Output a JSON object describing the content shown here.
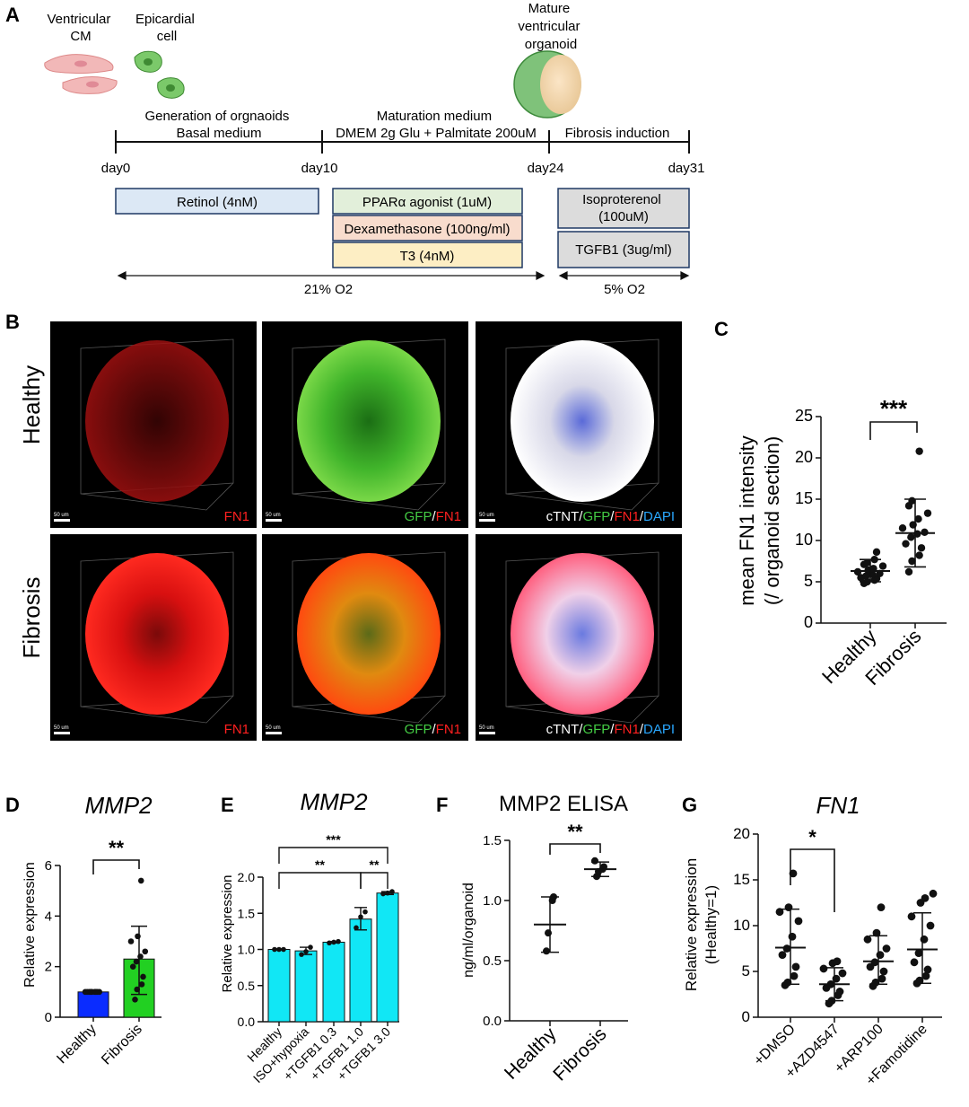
{
  "panel_labels": {
    "A": "A",
    "B": "B",
    "C": "C",
    "D": "D",
    "E": "E",
    "F": "F",
    "G": "G"
  },
  "panelA": {
    "cell1": [
      "Ventricular",
      "CM"
    ],
    "cell2": [
      "Epicardial",
      "cell"
    ],
    "organoid": [
      "Mature",
      "ventricular",
      "organoid"
    ],
    "phase1": [
      "Generation of orgnaoids",
      "Basal medium"
    ],
    "phase2": [
      "Maturation medium",
      "DMEM 2g Glu + Palmitate 200uM"
    ],
    "phase3": [
      "Fibrosis induction"
    ],
    "days": [
      "day0",
      "day10",
      "day24",
      "day31"
    ],
    "boxes": {
      "retinol": "Retinol (4nM)",
      "ppar": "PPARα agonist (1uM)",
      "dexa": "Dexamethasone (100ng/ml)",
      "t3": "T3 (4nM)",
      "iso": [
        "Isoproterenol",
        "(100uM)"
      ],
      "tgfb": "TGFB1 (3ug/ml)"
    },
    "o2_left": "21% O2",
    "o2_right": "5% O2",
    "colors": {
      "retinol": "#dce8f5",
      "ppar": "#e2efda",
      "dexa": "#f8dccd",
      "t3": "#fdeec4",
      "iso": "#dcdcdc",
      "tgfb": "#dcdcdc",
      "border": "#1f3864"
    }
  },
  "panelB": {
    "row_labels": [
      "Healthy",
      "Fibrosis"
    ],
    "scale_bar": "50 um",
    "captions": [
      [
        {
          "t": "FN1",
          "c": "#ff2020"
        }
      ],
      [
        {
          "t": "GFP",
          "c": "#44cc44"
        },
        {
          "t": "/",
          "c": "#ffffff"
        },
        {
          "t": "FN1",
          "c": "#ff2020"
        }
      ],
      [
        {
          "t": "cTNT",
          "c": "#ffffff"
        },
        {
          "t": "/",
          "c": "#ffffff"
        },
        {
          "t": "GFP",
          "c": "#44cc44"
        },
        {
          "t": "/",
          "c": "#ffffff"
        },
        {
          "t": "FN1",
          "c": "#ff2020"
        },
        {
          "t": "/",
          "c": "#ffffff"
        },
        {
          "t": "DAPI",
          "c": "#2aa8ff"
        }
      ]
    ]
  },
  "chart_data": [
    {
      "id": "C",
      "type": "scatter",
      "title": "",
      "ylabel": [
        "mean FN1 intensity",
        "(/ organoid section)"
      ],
      "categories": [
        "Healthy",
        "Fibrosis"
      ],
      "ylim": [
        0,
        25
      ],
      "yticks": [
        0,
        5,
        10,
        15,
        20,
        25
      ],
      "series": [
        {
          "name": "Healthy",
          "points": [
            4.8,
            5.0,
            5.2,
            5.4,
            5.5,
            5.7,
            5.9,
            6.0,
            6.2,
            6.4,
            6.6,
            6.9,
            7.1,
            7.3,
            7.7,
            8.6
          ],
          "mean": 6.3,
          "sd": [
            5.0,
            7.7
          ]
        },
        {
          "name": "Fibrosis",
          "points": [
            6.2,
            7.5,
            8.2,
            9.1,
            9.6,
            10.4,
            10.8,
            11.0,
            11.5,
            11.9,
            12.6,
            13.3,
            14.2,
            14.8,
            20.8
          ],
          "mean": 10.9,
          "sd": [
            6.8,
            15.0
          ]
        }
      ],
      "significance": "***"
    },
    {
      "id": "D",
      "type": "bar",
      "title": "MMP2",
      "ylabel": "Relative expression",
      "categories": [
        "Healthy",
        "Fibrosis"
      ],
      "ylim": [
        0,
        6
      ],
      "yticks": [
        0,
        2,
        4,
        6
      ],
      "values": [
        1.0,
        2.3
      ],
      "err": [
        [
          1.0,
          1.0
        ],
        [
          0.9,
          3.6
        ]
      ],
      "colors": [
        "#0a2cff",
        "#22d022"
      ],
      "points": [
        [
          1,
          1,
          1,
          1,
          1,
          1,
          1,
          1,
          1,
          1,
          1
        ],
        [
          0.7,
          1.1,
          1.3,
          1.6,
          2.0,
          2.2,
          2.4,
          2.6,
          3.0,
          3.2,
          5.4
        ]
      ],
      "significance": "**"
    },
    {
      "id": "E",
      "type": "bar",
      "title": "MMP2",
      "ylabel": "Relative expression",
      "categories": [
        "Healthy",
        "ISO+hypoxia",
        "+TGFB1 0.3",
        "+TGFB1 1.0",
        "+TGFB1 3.0"
      ],
      "ylim": [
        0,
        2.0
      ],
      "yticks": [
        "0.0",
        "0.5",
        "1.0",
        "1.5",
        "2.0"
      ],
      "values": [
        1.0,
        0.98,
        1.1,
        1.42,
        1.78
      ],
      "err": [
        [
          1.0,
          1.0
        ],
        [
          0.93,
          1.03
        ],
        [
          1.09,
          1.11
        ],
        [
          1.27,
          1.58
        ],
        [
          1.76,
          1.8
        ]
      ],
      "color": "#11e7f5",
      "points": [
        [
          1.0,
          1.0,
          1.0
        ],
        [
          0.93,
          0.97,
          1.03
        ],
        [
          1.09,
          1.1,
          1.11
        ],
        [
          1.3,
          1.45,
          1.52
        ],
        [
          1.77,
          1.78,
          1.8
        ]
      ],
      "significance": [
        {
          "from": 0,
          "to": 4,
          "label": "***"
        },
        {
          "from": 0,
          "to": 3,
          "label": "**"
        },
        {
          "from": 3,
          "to": 4,
          "label": "**"
        }
      ]
    },
    {
      "id": "F",
      "type": "scatter",
      "title": "MMP2 ELISA",
      "ylabel": "ng/ml/organoid",
      "categories": [
        "Healthy",
        "Fibrosis"
      ],
      "ylim": [
        0,
        1.5
      ],
      "yticks": [
        "0.0",
        "0.5",
        "1.0",
        "1.5"
      ],
      "series": [
        {
          "name": "Healthy",
          "points": [
            0.58,
            0.73,
            1.0,
            1.03
          ],
          "mean": 0.8,
          "sd": [
            0.57,
            1.03
          ]
        },
        {
          "name": "Fibrosis",
          "points": [
            1.2,
            1.24,
            1.26,
            1.28,
            1.33
          ],
          "mean": 1.26,
          "sd": [
            1.2,
            1.32
          ]
        }
      ],
      "significance": "**"
    },
    {
      "id": "G",
      "type": "scatter",
      "title": "FN1",
      "ylabel": [
        "Relative expression",
        "(Healthy=1)"
      ],
      "categories": [
        "+DMSO",
        "+AZD4547",
        "+ARP100",
        "+Famotidine"
      ],
      "ylim": [
        0,
        20
      ],
      "yticks": [
        0,
        5,
        10,
        15,
        20
      ],
      "series": [
        {
          "name": "+DMSO",
          "points": [
            3.5,
            3.8,
            4.5,
            5.5,
            6.8,
            7.5,
            8.8,
            10.5,
            11.5,
            12.0,
            15.7
          ],
          "mean": 7.6,
          "sd": [
            3.6,
            11.8
          ]
        },
        {
          "name": "+AZD4547",
          "points": [
            1.5,
            1.8,
            2.4,
            2.8,
            3.2,
            3.6,
            4.2,
            4.8,
            5.3,
            5.9,
            6.1
          ],
          "mean": 3.6,
          "sd": [
            1.8,
            5.4
          ]
        },
        {
          "name": "+ARP100",
          "points": [
            3.4,
            3.8,
            4.2,
            5.0,
            5.5,
            6.0,
            6.8,
            7.5,
            8.5,
            9.2,
            12.0
          ],
          "mean": 6.1,
          "sd": [
            3.6,
            8.9
          ]
        },
        {
          "name": "+Famotidine",
          "points": [
            3.7,
            4.0,
            4.5,
            5.2,
            6.0,
            7.0,
            8.5,
            10.0,
            11.0,
            12.5,
            13.0,
            13.5
          ],
          "mean": 7.4,
          "sd": [
            3.7,
            11.4
          ]
        }
      ],
      "significance": "*"
    }
  ]
}
